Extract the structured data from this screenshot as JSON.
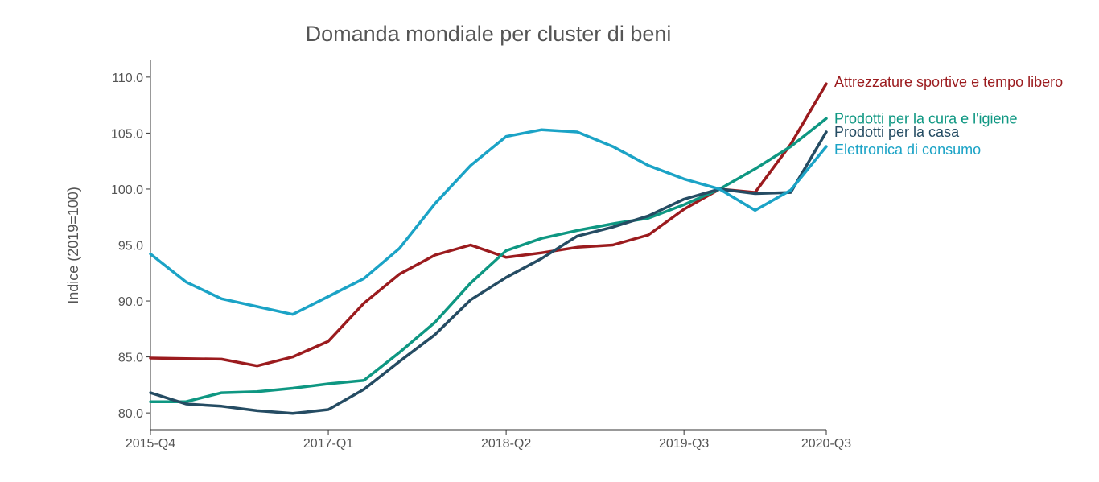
{
  "chart_data": {
    "type": "line",
    "title": "Domanda mondiale per cluster di beni",
    "ylabel": "Indice (2019=100)",
    "xlabel": "",
    "ylim": [
      78.5,
      111.5
    ],
    "yticks": [
      "80.0",
      "85.0",
      "90.0",
      "95.0",
      "100.0",
      "105.0",
      "110.0"
    ],
    "ytick_values": [
      80,
      85,
      90,
      95,
      100,
      105,
      110
    ],
    "x": [
      "2015-Q4",
      "2016-Q1",
      "2016-Q2",
      "2016-Q3",
      "2016-Q4",
      "2017-Q1",
      "2017-Q2",
      "2017-Q3",
      "2017-Q4",
      "2018-Q1",
      "2018-Q2",
      "2018-Q3",
      "2018-Q4",
      "2019-Q1",
      "2019-Q2",
      "2019-Q3",
      "2019-Q4",
      "2020-Q1",
      "2020-Q2",
      "2020-Q3"
    ],
    "xticks": [
      "2015-Q4",
      "2017-Q1",
      "2018-Q2",
      "2019-Q3",
      "2020-Q3"
    ],
    "grid": false,
    "legend": "labels at line ends (right)",
    "series": [
      {
        "name": "Attrezzature sportive e tempo libero",
        "color": "#9b1b1e",
        "values": [
          84.9,
          84.85,
          84.8,
          84.2,
          85.0,
          86.4,
          89.8,
          92.4,
          94.1,
          95.0,
          93.9,
          94.3,
          94.8,
          95.0,
          95.9,
          98.2,
          100.0,
          99.7,
          104.0,
          109.4
        ]
      },
      {
        "name": "Prodotti per la cura e l'igiene",
        "color": "#0e9782",
        "values": [
          81.0,
          81.0,
          81.8,
          81.9,
          82.2,
          82.6,
          82.9,
          85.4,
          88.1,
          91.6,
          94.5,
          95.6,
          96.3,
          96.9,
          97.4,
          98.6,
          100.0,
          101.8,
          103.8,
          106.3
        ]
      },
      {
        "name": "Prodotti per la casa",
        "color": "#254c63",
        "values": [
          81.8,
          80.8,
          80.6,
          80.2,
          79.95,
          80.3,
          82.1,
          84.6,
          87.0,
          90.1,
          92.1,
          93.8,
          95.8,
          96.6,
          97.6,
          99.1,
          100.0,
          99.6,
          99.7,
          105.1
        ]
      },
      {
        "name": "Elettronica di consumo",
        "color": "#1ba3c6",
        "values": [
          94.2,
          91.7,
          90.2,
          89.5,
          88.8,
          90.4,
          92.0,
          94.7,
          98.7,
          102.1,
          104.7,
          105.3,
          105.1,
          103.8,
          102.1,
          100.9,
          100.0,
          98.1,
          99.9,
          103.8
        ]
      }
    ]
  }
}
